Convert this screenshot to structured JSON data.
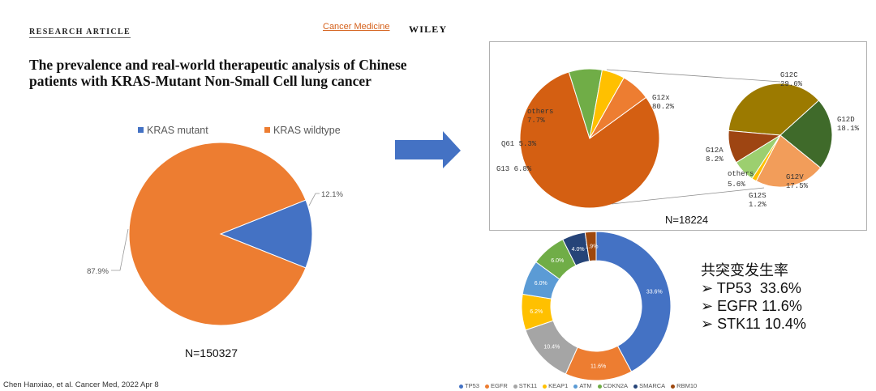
{
  "header": {
    "label": "RESEARCH ARTICLE",
    "journal": "Cancer Medicine",
    "publisher": "WILEY"
  },
  "title": "The prevalence and real-world therapeutic analysis of Chinese patients with KRAS-Mutant Non-Small Cell lung cancer",
  "citation": "Chen Hanxiao, et al. Cancer Med, 2022 Apr 8",
  "arrow_color": "#4472c4",
  "chart_data": [
    {
      "type": "pie",
      "categories": [
        "KRAS mutant",
        "KRAS wildtype"
      ],
      "values": [
        12.1,
        87.9
      ],
      "labels": [
        "12.1%",
        "87.9%"
      ],
      "colors": [
        "#4472c4",
        "#ed7d31"
      ],
      "legend": "top",
      "footer": "N=150327"
    },
    {
      "type": "pie",
      "categories": [
        "G12x",
        "others",
        "Q61",
        "G13"
      ],
      "values": [
        80.2,
        7.7,
        5.3,
        6.8
      ],
      "labels": [
        "G12x\n80.2%",
        "others\n7.7%",
        "Q61 5.3%",
        "G13 6.8%"
      ],
      "colors": [
        "#d45f12",
        "#70ad47",
        "#ffc000",
        "#ed7d31"
      ]
    },
    {
      "type": "pie",
      "categories": [
        "G12C",
        "G12D",
        "G12V",
        "G12S",
        "others",
        "G12A"
      ],
      "values": [
        29.6,
        18.1,
        17.5,
        1.2,
        5.6,
        8.2
      ],
      "labels": [
        "G12C\n29.6%",
        "G12D\n18.1%",
        "G12V\n17.5%",
        "G12S\n1.2%",
        "others\n5.6%",
        "G12A\n8.2%"
      ],
      "colors": [
        "#9c7a00",
        "#3f6a2a",
        "#f29d5a",
        "#ffc000",
        "#9ccf6f",
        "#9e4512"
      ],
      "footer": "N=18224"
    },
    {
      "type": "donut",
      "categories": [
        "TP53",
        "EGFR",
        "STK11",
        "KEAP1",
        "ATM",
        "CDKN2A",
        "SMARCA",
        "RBM10"
      ],
      "values": [
        33.6,
        11.6,
        10.4,
        6.2,
        6.0,
        6.0,
        4.0,
        1.9
      ],
      "labels": [
        "33.6%",
        "11.6%",
        "10.4%",
        "6.2%",
        "6.0%",
        "6.0%",
        "4.0%",
        "1.9%"
      ],
      "colors": [
        "#4472c4",
        "#ed7d31",
        "#a5a5a5",
        "#ffc000",
        "#5b9bd5",
        "#70ad47",
        "#264478",
        "#9e480e"
      ],
      "legend": "bottom"
    }
  ],
  "cooccurrence": {
    "heading": "共突变发生率",
    "items": [
      {
        "gene": "TP53",
        "value": "33.6%"
      },
      {
        "gene": "EGFR",
        "value": "11.6%"
      },
      {
        "gene": "STK11",
        "value": "10.4%"
      }
    ]
  }
}
